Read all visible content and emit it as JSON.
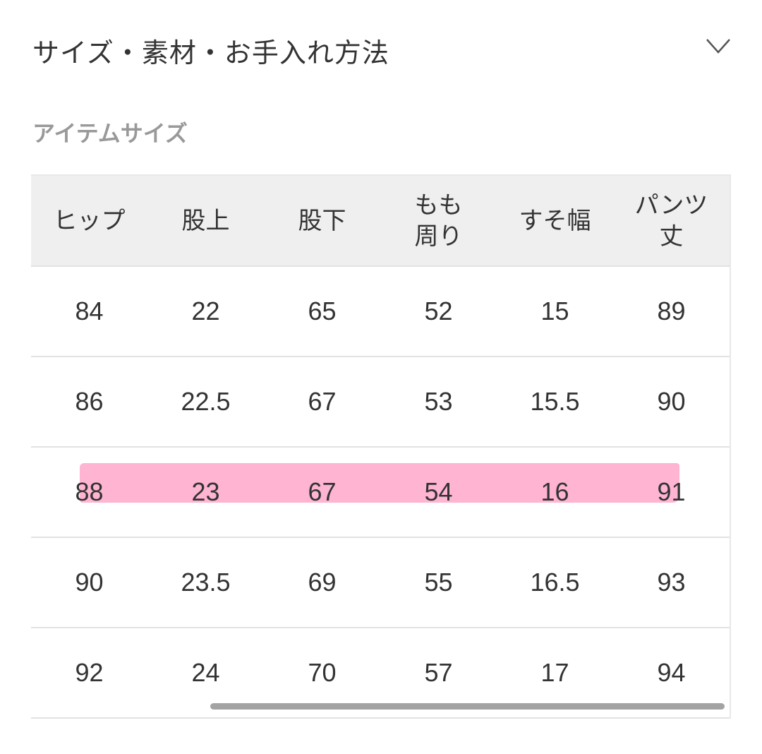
{
  "section": {
    "title": "サイズ・素材・お手入れ方法",
    "toggle_icon": "chevron-down-icon"
  },
  "subtitle": "アイテムサイズ",
  "table": {
    "headers": [
      "ヒップ",
      "股上",
      "股下",
      "もも\n周り",
      "すそ幅",
      "パンツ\n丈"
    ],
    "rows": [
      [
        "84",
        "22",
        "65",
        "52",
        "15",
        "89"
      ],
      [
        "86",
        "22.5",
        "67",
        "53",
        "15.5",
        "90"
      ],
      [
        "88",
        "23",
        "67",
        "54",
        "16",
        "91"
      ],
      [
        "90",
        "23.5",
        "69",
        "55",
        "16.5",
        "93"
      ],
      [
        "92",
        "24",
        "70",
        "57",
        "17",
        "94"
      ]
    ],
    "highlighted_row": 2,
    "highlight_color": "#ffb0cf"
  }
}
